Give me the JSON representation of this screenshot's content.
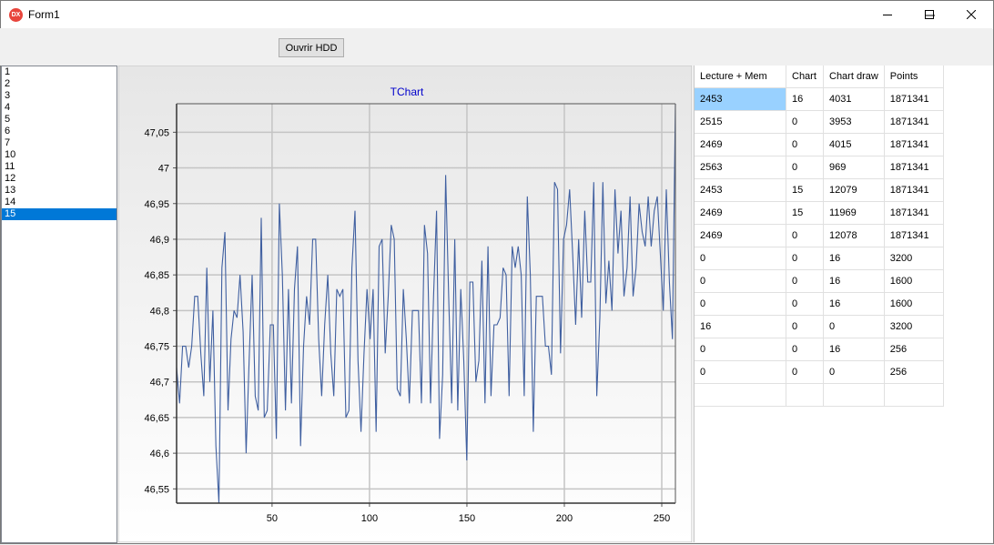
{
  "window": {
    "title": "Form1",
    "icon_text": "DX"
  },
  "toolbar": {
    "open_button": "Ouvrir HDD"
  },
  "list": {
    "items": [
      "1",
      "2",
      "3",
      "4",
      "5",
      "6",
      "7",
      "10",
      "11",
      "12",
      "13",
      "14",
      "15"
    ],
    "selected_index": 12
  },
  "chart_data": {
    "type": "line",
    "title": "TChart",
    "xlabel": "",
    "ylabel": "",
    "x_ticks": [
      50,
      100,
      150,
      200,
      250
    ],
    "y_ticks": [
      "46,55",
      "46,6",
      "46,65",
      "46,7",
      "46,75",
      "46,8",
      "46,85",
      "46,9",
      "46,95",
      "47",
      "47,05"
    ],
    "xlim": [
      1,
      257
    ],
    "ylim": [
      46.53,
      47.09
    ],
    "grid": true,
    "series": [
      {
        "values": [
          46.72,
          46.67,
          46.75,
          46.75,
          46.72,
          46.75,
          46.82,
          46.82,
          46.74,
          46.68,
          46.86,
          46.7,
          46.8,
          46.61,
          46.53,
          46.86,
          46.91,
          46.66,
          46.76,
          46.8,
          46.79,
          46.85,
          46.77,
          46.6,
          46.73,
          46.85,
          46.68,
          46.66,
          46.93,
          46.65,
          46.66,
          46.78,
          46.78,
          46.62,
          46.95,
          46.85,
          46.66,
          46.83,
          46.67,
          46.83,
          46.89,
          46.61,
          46.75,
          46.82,
          46.78,
          46.9,
          46.9,
          46.76,
          46.68,
          46.78,
          46.85,
          46.74,
          46.68,
          46.83,
          46.82,
          46.83,
          46.65,
          46.66,
          46.86,
          46.94,
          46.73,
          46.63,
          46.74,
          46.83,
          46.76,
          46.83,
          46.63,
          46.89,
          46.9,
          46.74,
          46.82,
          46.92,
          46.9,
          46.69,
          46.68,
          46.83,
          46.76,
          46.67,
          46.8,
          46.8,
          46.8,
          46.67,
          46.92,
          46.88,
          46.67,
          46.82,
          46.94,
          46.62,
          46.71,
          46.99,
          46.82,
          46.67,
          46.9,
          46.66,
          46.83,
          46.73,
          46.59,
          46.84,
          46.84,
          46.7,
          46.73,
          46.87,
          46.67,
          46.89,
          46.68,
          46.78,
          46.78,
          46.79,
          46.86,
          46.85,
          46.68,
          46.89,
          46.86,
          46.89,
          46.85,
          46.68,
          46.96,
          46.85,
          46.63,
          46.82,
          46.82,
          46.82,
          46.75,
          46.75,
          46.71,
          46.98,
          46.97,
          46.74,
          46.9,
          46.92,
          46.97,
          46.88,
          46.78,
          46.9,
          46.79,
          46.94,
          46.84,
          46.84,
          46.98,
          46.68,
          46.79,
          46.98,
          46.81,
          46.87,
          46.8,
          46.97,
          46.88,
          46.94,
          46.82,
          46.86,
          46.96,
          46.82,
          46.86,
          46.95,
          46.91,
          46.89,
          46.96,
          46.89,
          46.94,
          46.96,
          46.88,
          46.8,
          46.97,
          46.84,
          46.76,
          47.09
        ]
      }
    ]
  },
  "table": {
    "headers": [
      "Lecture + Mem",
      "Chart",
      "Chart draw",
      "Points"
    ],
    "rows": [
      [
        "2453",
        "16",
        "4031",
        "1871341"
      ],
      [
        "2515",
        "0",
        "3953",
        "1871341"
      ],
      [
        "2469",
        "0",
        "4015",
        "1871341"
      ],
      [
        "2563",
        "0",
        "969",
        "1871341"
      ],
      [
        "2453",
        "15",
        "12079",
        "1871341"
      ],
      [
        "2469",
        "15",
        "11969",
        "1871341"
      ],
      [
        "2469",
        "0",
        "12078",
        "1871341"
      ],
      [
        "0",
        "0",
        "16",
        "3200"
      ],
      [
        "0",
        "0",
        "16",
        "1600"
      ],
      [
        "0",
        "0",
        "16",
        "1600"
      ],
      [
        "16",
        "0",
        "0",
        "3200"
      ],
      [
        "0",
        "0",
        "16",
        "256"
      ],
      [
        "0",
        "0",
        "0",
        "256"
      ],
      [
        "",
        "",
        "",
        ""
      ]
    ],
    "selected_cell": [
      0,
      0
    ],
    "colors": {
      "selection": "#99d1ff"
    }
  },
  "colors": {
    "list_selection": "#0078d7",
    "series": "#3f5fa0",
    "chart_title": "#0000cc"
  }
}
